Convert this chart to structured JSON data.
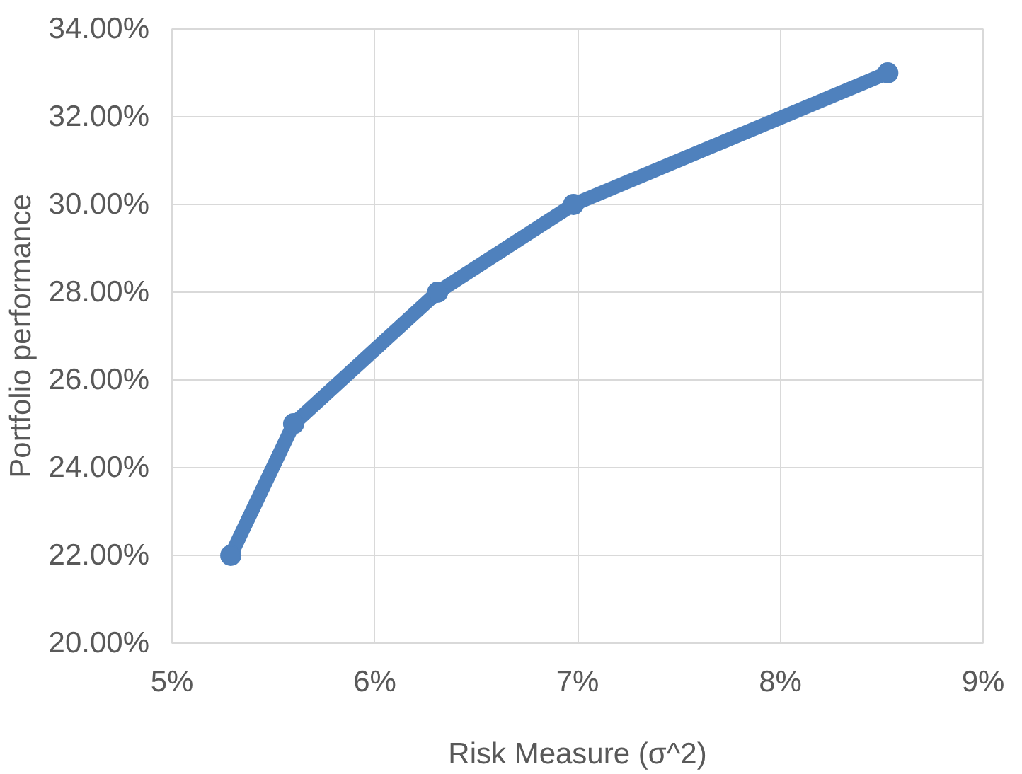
{
  "chart_data": {
    "type": "line",
    "xlabel": "Risk Measure (σ^2)",
    "ylabel": "Portfolio performance",
    "x": [
      5.29,
      5.6,
      6.31,
      6.98,
      8.53
    ],
    "series": [
      {
        "color": "#4f81bd",
        "values": [
          22,
          25,
          28,
          30,
          33
        ]
      }
    ],
    "xlim": [
      5,
      9
    ],
    "xticks": [
      {
        "value": 5,
        "label": "5%"
      },
      {
        "value": 6,
        "label": "6%"
      },
      {
        "value": 7,
        "label": "7%"
      },
      {
        "value": 8,
        "label": "8%"
      },
      {
        "value": 9,
        "label": "9%"
      }
    ],
    "ylim": [
      20,
      34
    ],
    "yticks": [
      {
        "value": 20,
        "label": "20.00%"
      },
      {
        "value": 22,
        "label": "22.00%"
      },
      {
        "value": 24,
        "label": "24.00%"
      },
      {
        "value": 26,
        "label": "26.00%"
      },
      {
        "value": 28,
        "label": "28.00%"
      },
      {
        "value": 30,
        "label": "30.00%"
      },
      {
        "value": 32,
        "label": "32.00%"
      },
      {
        "value": 34,
        "label": "34.00%"
      }
    ],
    "grid": true,
    "marker": "circle",
    "line_style": "solid"
  }
}
